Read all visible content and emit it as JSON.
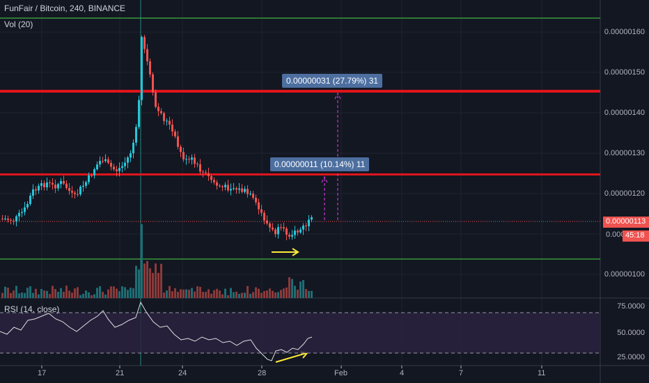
{
  "header": {
    "title": "FunFair / Bitcoin, 240, BINANCE",
    "volume_label": "Vol (20)",
    "rsi_label": "RSI (14, close)"
  },
  "colors": {
    "background": "#131722",
    "grid": "#1e2330",
    "up": "#26c6da",
    "down": "#ef5350",
    "resistance": "#e0141c",
    "support": "#3fb43f",
    "badge": "#4d6fa0",
    "arrow": "#ffeb3b",
    "projection": "#cc33cc",
    "rsi_line": "#e0e0e0",
    "rsi_band": "#2a2240"
  },
  "price_axis": {
    "ticks": [
      "0.00000160",
      "0.00000150",
      "0.00000140",
      "0.00000130",
      "0.00000120",
      "0.00000100"
    ],
    "partial_tick": "0.000",
    "current_price": "0.00000113",
    "countdown": "45:18"
  },
  "rsi_axis": {
    "ticks": [
      "75.0000",
      "50.0000",
      "25.0000"
    ]
  },
  "time_axis": {
    "ticks": [
      "17",
      "21",
      "24",
      "28",
      "Feb",
      "4",
      "7",
      "11"
    ]
  },
  "annotations": {
    "upper_target": "0.00000031 (27.79%) 31",
    "lower_target": "0.00000011 (10.14%) 11"
  }
}
